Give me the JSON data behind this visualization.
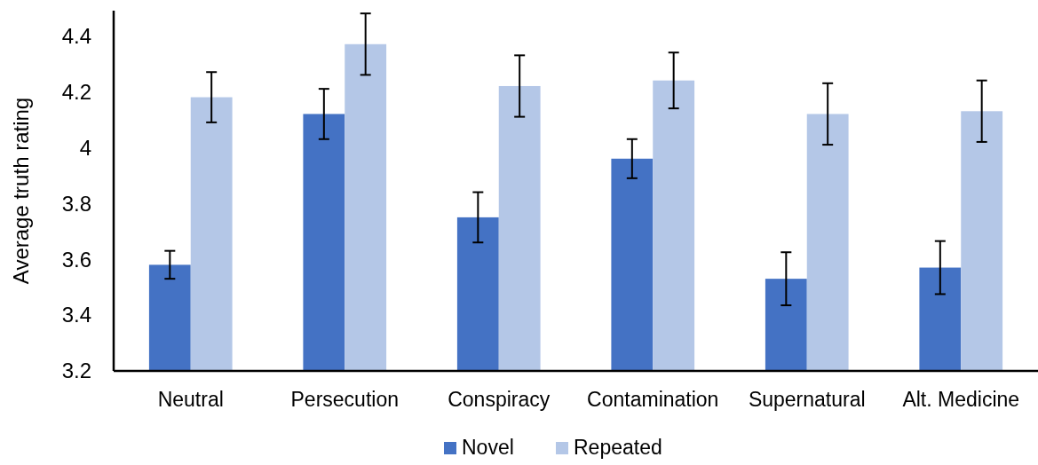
{
  "chart_data": {
    "type": "bar",
    "ylabel": "Average truth rating",
    "categories": [
      "Neutral",
      "Persecution",
      "Conspiracy",
      "Contamination",
      "Supernatural",
      "Alt. Medicine"
    ],
    "series": [
      {
        "name": "Novel",
        "color": "#4472c4",
        "values": [
          3.58,
          4.12,
          3.75,
          3.96,
          3.53,
          3.57
        ],
        "errors": [
          0.05,
          0.09,
          0.09,
          0.07,
          0.095,
          0.095
        ]
      },
      {
        "name": "Repeated",
        "color": "#b4c7e7",
        "values": [
          4.18,
          4.37,
          4.22,
          4.24,
          4.12,
          4.13
        ],
        "errors": [
          0.09,
          0.11,
          0.11,
          0.1,
          0.11,
          0.11
        ]
      }
    ],
    "ylim": [
      3.2,
      4.49
    ],
    "yticks": [
      3.2,
      3.4,
      3.6,
      3.8,
      {
        "value": 4,
        "label": "4"
      },
      4.2,
      4.4
    ],
    "grid": false,
    "legend": "bottom"
  }
}
